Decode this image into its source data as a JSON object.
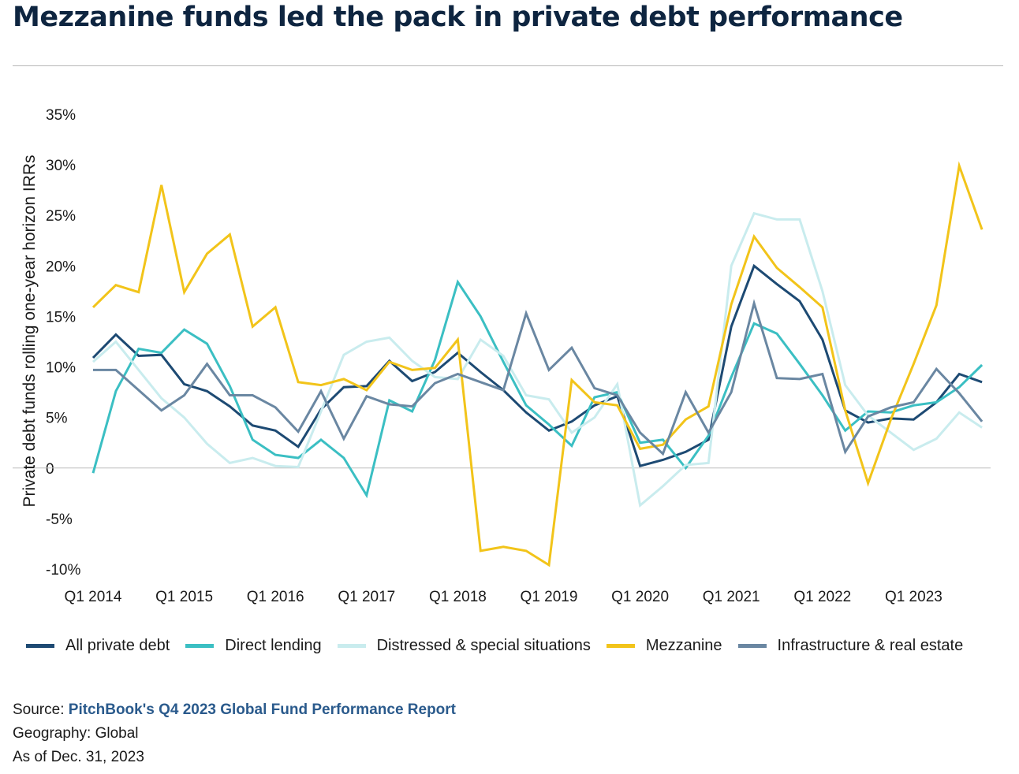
{
  "title": "Mezzanine funds led the pack in private debt performance",
  "footer": {
    "source_prefix": "Source: ",
    "source_link": "PitchBook's Q4 2023 Global Fund Performance Report",
    "geography": "Geography: Global",
    "as_of": "As of Dec. 31, 2023"
  },
  "colors": {
    "all_private_debt": "#1d4a73",
    "direct_lending": "#3bbfc3",
    "distressed": "#c9ecee",
    "mezzanine": "#f2c41a",
    "infrastructure": "#6a87a2"
  },
  "chart_data": {
    "type": "line",
    "title": "Mezzanine funds led the pack in private debt performance",
    "ylabel": "Private debt funds rolling one-year horizon IRRs",
    "xlabel": "",
    "ylim": [
      -10,
      35
    ],
    "y_ticks": [
      "-10%",
      "-5%",
      "0",
      "5%",
      "10%",
      "15%",
      "20%",
      "25%",
      "30%",
      "35%"
    ],
    "grid": "zero line only",
    "legend_position": "bottom",
    "x": [
      "Q1 2014",
      "Q2 2014",
      "Q3 2014",
      "Q4 2014",
      "Q1 2015",
      "Q2 2015",
      "Q3 2015",
      "Q4 2015",
      "Q1 2016",
      "Q2 2016",
      "Q3 2016",
      "Q4 2016",
      "Q1 2017",
      "Q2 2017",
      "Q3 2017",
      "Q4 2017",
      "Q1 2018",
      "Q2 2018",
      "Q3 2018",
      "Q4 2018",
      "Q1 2019",
      "Q2 2019",
      "Q3 2019",
      "Q4 2019",
      "Q1 2020",
      "Q2 2020",
      "Q3 2020",
      "Q4 2020",
      "Q1 2021",
      "Q2 2021",
      "Q3 2021",
      "Q4 2021",
      "Q1 2022",
      "Q2 2022",
      "Q3 2022",
      "Q4 2022",
      "Q1 2023",
      "Q2 2023",
      "Q3 2023",
      "Q4 2023"
    ],
    "x_tick_labels": [
      "Q1 2014",
      "Q1 2015",
      "Q1 2016",
      "Q1 2017",
      "Q1 2018",
      "Q1 2019",
      "Q1 2020",
      "Q1 2021",
      "Q1 2022",
      "Q1 2023"
    ],
    "series": [
      {
        "name": "All private debt",
        "values": [
          10.9,
          13.2,
          11.1,
          11.2,
          8.3,
          7.6,
          6.1,
          4.2,
          3.7,
          2.1,
          5.8,
          8.0,
          8.1,
          10.6,
          8.6,
          9.5,
          11.4,
          9.5,
          7.7,
          5.5,
          3.7,
          4.6,
          6.2,
          7.1,
          0.2,
          0.8,
          1.6,
          2.8,
          14.0,
          20.0,
          18.2,
          16.5,
          12.7,
          5.7,
          4.5,
          4.9,
          4.8,
          6.5,
          9.3,
          8.5
        ]
      },
      {
        "name": "Direct lending",
        "values": [
          -0.5,
          7.6,
          11.8,
          11.4,
          13.7,
          12.3,
          8.1,
          2.8,
          1.3,
          1.0,
          2.8,
          1.0,
          -2.7,
          6.7,
          5.6,
          10.7,
          18.4,
          15.0,
          10.5,
          6.2,
          4.3,
          2.2,
          7.0,
          7.5,
          2.5,
          2.8,
          0.0,
          3.2,
          9.0,
          14.3,
          13.3,
          10.3,
          7.2,
          3.7,
          5.6,
          5.5,
          6.2,
          6.5,
          8.0,
          10.2
        ]
      },
      {
        "name": "Distressed & special situations",
        "values": [
          10.5,
          12.5,
          9.7,
          6.9,
          5.0,
          2.4,
          0.5,
          1.0,
          0.2,
          0.1,
          5.6,
          11.2,
          12.5,
          12.9,
          10.6,
          9.0,
          8.8,
          12.7,
          11.1,
          7.2,
          6.8,
          3.5,
          5.0,
          8.3,
          -3.7,
          -1.8,
          0.3,
          0.5,
          20.0,
          25.2,
          24.6,
          24.6,
          17.5,
          8.2,
          5.2,
          3.5,
          1.8,
          2.9,
          5.5,
          4.0
        ]
      },
      {
        "name": "Mezzanine",
        "values": [
          15.9,
          18.1,
          17.4,
          28.0,
          17.4,
          21.2,
          23.1,
          14.0,
          15.9,
          8.5,
          8.2,
          8.8,
          7.7,
          10.5,
          9.7,
          9.9,
          12.7,
          -8.2,
          -7.8,
          -8.2,
          -9.6,
          8.7,
          6.5,
          6.2,
          1.9,
          2.3,
          4.8,
          6.1,
          16.2,
          22.9,
          19.8,
          17.9,
          15.9,
          5.7,
          -1.5,
          4.8,
          10.3,
          16.1,
          29.9,
          23.6
        ]
      },
      {
        "name": "Infrastructure & real estate",
        "values": [
          9.7,
          9.7,
          7.7,
          5.7,
          7.2,
          10.3,
          7.2,
          7.2,
          6.0,
          3.6,
          7.6,
          2.9,
          7.1,
          6.3,
          6.1,
          8.4,
          9.3,
          8.5,
          7.7,
          15.3,
          9.7,
          11.9,
          7.9,
          7.2,
          3.5,
          1.4,
          7.5,
          3.5,
          7.5,
          16.3,
          8.9,
          8.8,
          9.3,
          1.6,
          5.1,
          6.0,
          6.5,
          9.8,
          7.4,
          4.6
        ]
      }
    ]
  }
}
